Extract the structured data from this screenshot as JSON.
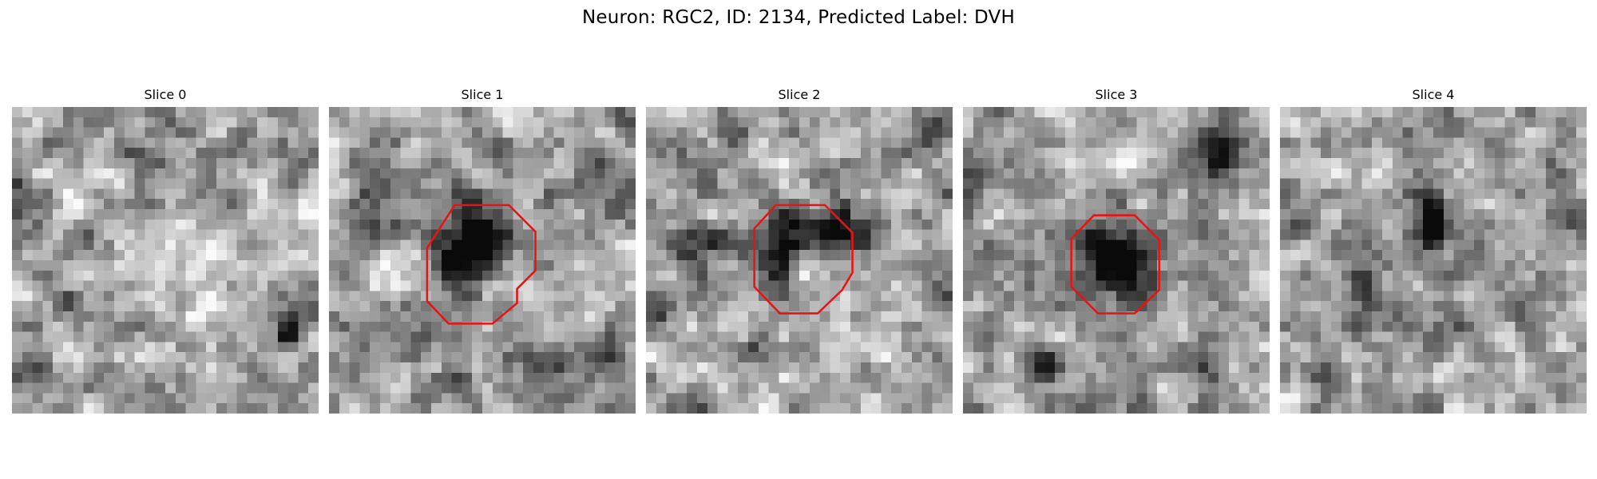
{
  "figure": {
    "title": "Neuron: RGC2, ID: 2134, Predicted Label: DVH"
  },
  "colors": {
    "contour": "#e81414",
    "background": "#ffffff"
  },
  "panels": [
    {
      "label": "Slice 0",
      "has_contour": false
    },
    {
      "label": "Slice 1",
      "has_contour": true
    },
    {
      "label": "Slice 2",
      "has_contour": true
    },
    {
      "label": "Slice 3",
      "has_contour": true
    },
    {
      "label": "Slice 4",
      "has_contour": false
    }
  ]
}
